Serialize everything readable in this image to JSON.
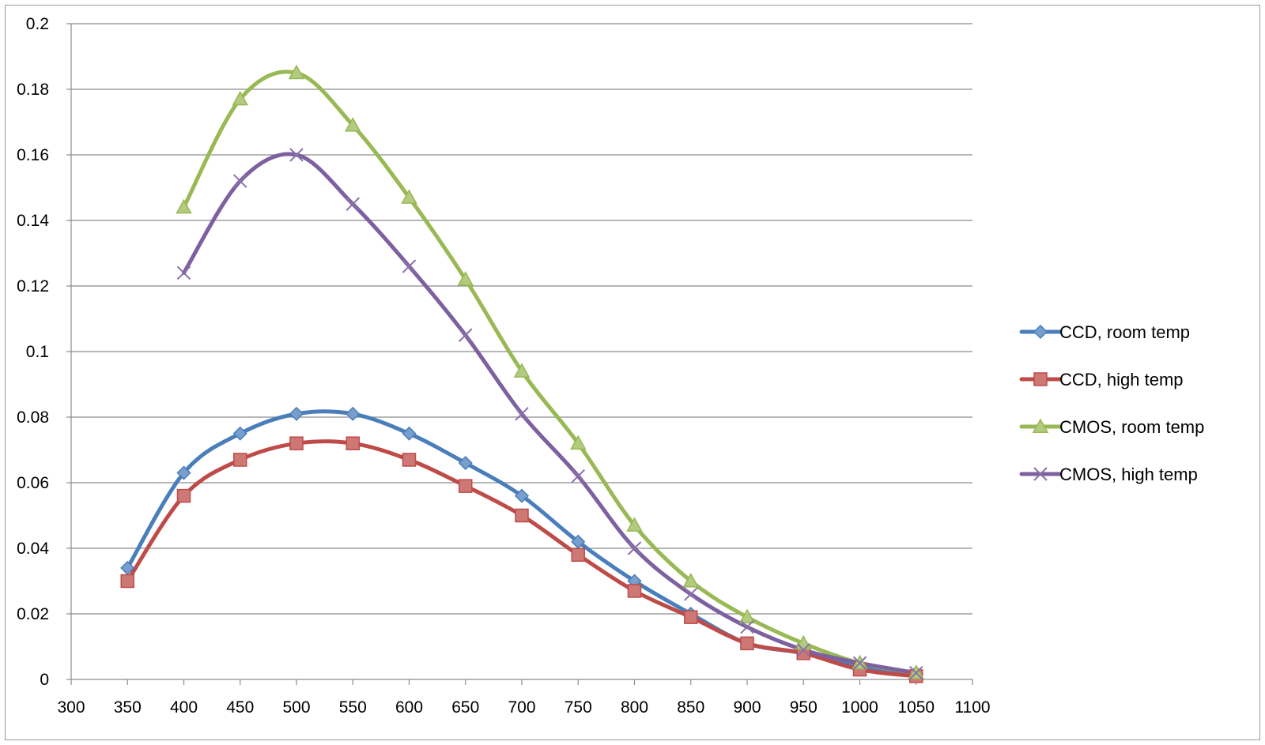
{
  "chart_data": {
    "type": "line",
    "title": "",
    "xlabel": "",
    "ylabel": "",
    "xlim": [
      300,
      1100
    ],
    "ylim": [
      0,
      0.2
    ],
    "x_ticks": [
      300,
      350,
      400,
      450,
      500,
      550,
      600,
      650,
      700,
      750,
      800,
      850,
      900,
      950,
      1000,
      1050,
      1100
    ],
    "y_ticks": [
      0,
      0.02,
      0.04,
      0.06,
      0.08,
      0.1,
      0.12,
      0.14,
      0.16,
      0.18,
      0.2
    ],
    "grid": "horizontal",
    "legend_position": "right",
    "series": [
      {
        "name": "CCD, room temp",
        "color": "#4a7ebb",
        "marker": "diamond",
        "x": [
          350,
          400,
          450,
          500,
          550,
          600,
          650,
          700,
          750,
          800,
          850,
          900,
          950,
          1000,
          1050
        ],
        "y": [
          0.034,
          0.063,
          0.075,
          0.081,
          0.081,
          0.075,
          0.066,
          0.056,
          0.042,
          0.03,
          0.02,
          0.011,
          0.008,
          0.004,
          0.002
        ]
      },
      {
        "name": "CCD, high temp",
        "color": "#be4b48",
        "marker": "square",
        "x": [
          350,
          400,
          450,
          500,
          550,
          600,
          650,
          700,
          750,
          800,
          850,
          900,
          950,
          1000,
          1050
        ],
        "y": [
          0.03,
          0.056,
          0.067,
          0.072,
          0.072,
          0.067,
          0.059,
          0.05,
          0.038,
          0.027,
          0.019,
          0.011,
          0.008,
          0.003,
          0.001
        ]
      },
      {
        "name": "CMOS, room temp",
        "color": "#98b954",
        "marker": "triangle",
        "x": [
          400,
          450,
          500,
          550,
          600,
          650,
          700,
          750,
          800,
          850,
          900,
          950,
          1000,
          1050
        ],
        "y": [
          0.144,
          0.177,
          0.185,
          0.169,
          0.147,
          0.122,
          0.094,
          0.072,
          0.047,
          0.03,
          0.019,
          0.011,
          0.005,
          0.002
        ]
      },
      {
        "name": "CMOS, high temp",
        "color": "#7d60a0",
        "marker": "x",
        "x": [
          400,
          450,
          500,
          550,
          600,
          650,
          700,
          750,
          800,
          850,
          900,
          950,
          1000,
          1050
        ],
        "y": [
          0.124,
          0.152,
          0.16,
          0.145,
          0.126,
          0.105,
          0.081,
          0.062,
          0.04,
          0.026,
          0.016,
          0.009,
          0.005,
          0.002
        ]
      }
    ]
  }
}
